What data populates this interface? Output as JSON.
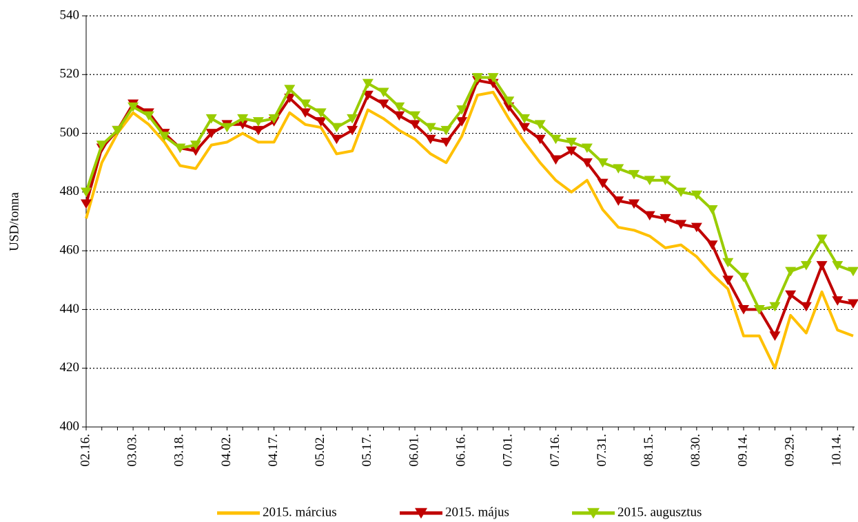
{
  "chart_data": {
    "type": "line",
    "y_label": "USD/tonna",
    "categories": [
      "02.16.",
      null,
      null,
      "03.03.",
      null,
      null,
      "03.18.",
      null,
      null,
      "04.02.",
      null,
      null,
      "04.17.",
      null,
      null,
      "05.02.",
      null,
      null,
      "05.17.",
      null,
      null,
      "06.01.",
      null,
      null,
      "06.16.",
      null,
      null,
      "07.01.",
      null,
      null,
      "07.16.",
      null,
      null,
      "07.31.",
      null,
      null,
      "08.15.",
      null,
      null,
      "08.30.",
      null,
      null,
      "09.14.",
      null,
      null,
      "09.29.",
      null,
      null,
      "10.14.",
      null
    ],
    "series": [
      {
        "name": "2015. március",
        "color": "#ffc000",
        "marker": "none",
        "values": [
          471,
          490,
          500,
          507,
          503,
          497,
          489,
          488,
          496,
          497,
          500,
          497,
          497,
          507,
          503,
          502,
          493,
          494,
          508,
          505,
          501,
          498,
          493,
          490,
          499,
          513,
          514,
          505,
          497,
          490,
          484,
          480,
          484,
          474,
          468,
          467,
          465,
          461,
          462,
          458,
          452,
          447,
          431,
          431,
          420,
          438,
          432,
          446,
          433,
          431
        ]
      },
      {
        "name": "2015. május",
        "color": "#c00000",
        "marker": "triangle-down",
        "values": [
          476,
          495,
          501,
          510,
          507,
          500,
          495,
          494,
          500,
          503,
          503,
          501,
          504,
          512,
          507,
          504,
          498,
          501,
          513,
          510,
          506,
          503,
          498,
          497,
          504,
          518,
          517,
          509,
          502,
          498,
          491,
          494,
          490,
          483,
          477,
          476,
          472,
          471,
          469,
          468,
          462,
          450,
          440,
          440,
          431,
          445,
          441,
          455,
          443,
          442
        ]
      },
      {
        "name": "2015. augusztus",
        "color": "#99cc00",
        "marker": "triangle-down",
        "values": [
          480,
          496,
          501,
          509,
          506,
          499,
          495,
          496,
          505,
          502,
          505,
          504,
          505,
          515,
          510,
          507,
          502,
          505,
          517,
          514,
          509,
          506,
          502,
          501,
          508,
          519,
          519,
          511,
          505,
          503,
          498,
          497,
          495,
          490,
          488,
          486,
          484,
          484,
          480,
          479,
          474,
          456,
          451,
          440,
          441,
          453,
          455,
          464,
          455,
          453
        ]
      }
    ],
    "ylim": [
      400,
      540
    ],
    "yticks": [
      400,
      420,
      440,
      460,
      480,
      500,
      520,
      540
    ],
    "grid": true,
    "legend": "bottom"
  }
}
